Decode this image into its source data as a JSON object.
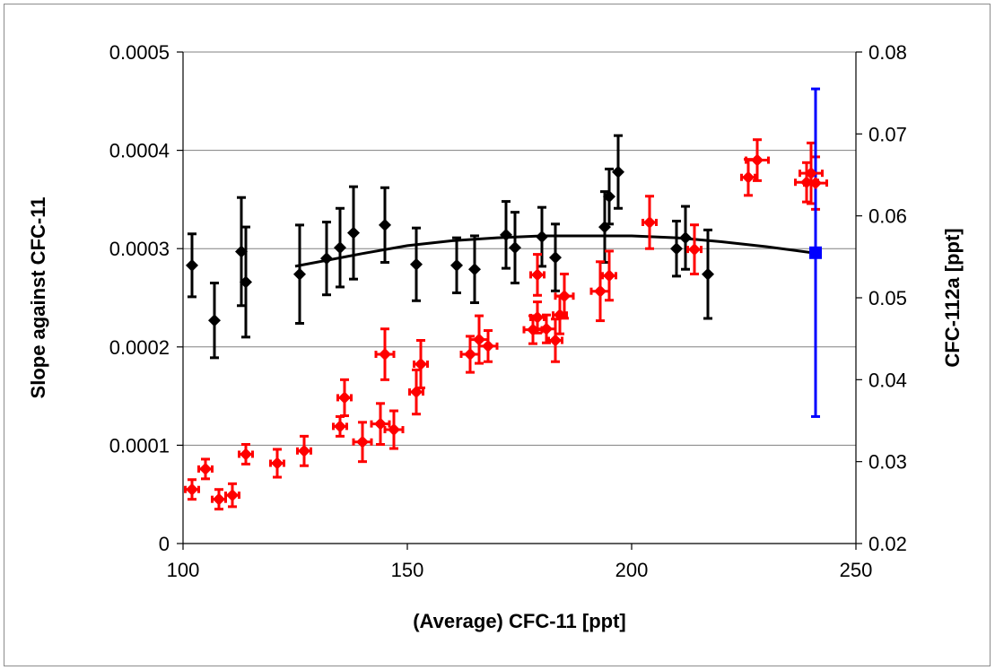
{
  "chart_data": {
    "type": "scatter",
    "title": "",
    "xlabel": "(Average) CFC-11 [ppt]",
    "ylabel": "Slope against CFC-11",
    "y2label": "CFC-112a [ppt]",
    "xlim": [
      100,
      250
    ],
    "ylim": [
      0,
      0.0005
    ],
    "y2lim": [
      0.02,
      0.08
    ],
    "x_ticks": [
      "100",
      "150",
      "200",
      "250"
    ],
    "y_ticks": [
      "0",
      "0.0001",
      "0.0002",
      "0.0003",
      "0.0004",
      "0.0005"
    ],
    "y2_ticks": [
      "0.02",
      "0.03",
      "0.04",
      "0.05",
      "0.06",
      "0.07",
      "0.08"
    ],
    "grid": "horizontal",
    "series": [
      {
        "axis": "left",
        "color": "#000000",
        "marker": "diamond",
        "points": [
          {
            "x": 102,
            "y": 0.000283,
            "yerr": 3.2e-05
          },
          {
            "x": 107,
            "y": 0.000227,
            "yerr": 3.8e-05
          },
          {
            "x": 113,
            "y": 0.000297,
            "yerr": 5.5e-05
          },
          {
            "x": 114,
            "y": 0.000266,
            "yerr": 5.6e-05
          },
          {
            "x": 126,
            "y": 0.000274,
            "yerr": 5e-05
          },
          {
            "x": 132,
            "y": 0.00029,
            "yerr": 3.7e-05
          },
          {
            "x": 135,
            "y": 0.000301,
            "yerr": 4e-05
          },
          {
            "x": 138,
            "y": 0.000316,
            "yerr": 4.7e-05
          },
          {
            "x": 145,
            "y": 0.000324,
            "yerr": 3.8e-05
          },
          {
            "x": 152,
            "y": 0.000284,
            "yerr": 3.7e-05
          },
          {
            "x": 161,
            "y": 0.000283,
            "yerr": 2.8e-05
          },
          {
            "x": 165,
            "y": 0.000279,
            "yerr": 3.4e-05
          },
          {
            "x": 172,
            "y": 0.000314,
            "yerr": 3.4e-05
          },
          {
            "x": 174,
            "y": 0.000301,
            "yerr": 3.6e-05
          },
          {
            "x": 180,
            "y": 0.000312,
            "yerr": 3e-05
          },
          {
            "x": 183,
            "y": 0.000291,
            "yerr": 3.4e-05
          },
          {
            "x": 194,
            "y": 0.000322,
            "yerr": 3.6e-05
          },
          {
            "x": 195,
            "y": 0.000353,
            "yerr": 2.8e-05
          },
          {
            "x": 197,
            "y": 0.000378,
            "yerr": 3.7e-05
          },
          {
            "x": 210,
            "y": 0.0003,
            "yerr": 2.8e-05
          },
          {
            "x": 212,
            "y": 0.000311,
            "yerr": 3.2e-05
          },
          {
            "x": 217,
            "y": 0.000274,
            "yerr": 4.5e-05
          }
        ]
      },
      {
        "axis": "left",
        "type": "line",
        "color": "#000000",
        "points": [
          {
            "x": 125,
            "y": 0.000282
          },
          {
            "x": 140,
            "y": 0.000295
          },
          {
            "x": 150,
            "y": 0.000303
          },
          {
            "x": 160,
            "y": 0.000308
          },
          {
            "x": 170,
            "y": 0.000311
          },
          {
            "x": 180,
            "y": 0.000313
          },
          {
            "x": 190,
            "y": 0.000313
          },
          {
            "x": 200,
            "y": 0.000313
          },
          {
            "x": 210,
            "y": 0.000311
          },
          {
            "x": 220,
            "y": 0.000307
          },
          {
            "x": 230,
            "y": 0.000302
          },
          {
            "x": 240,
            "y": 0.000296
          }
        ]
      },
      {
        "axis": "right",
        "color": "#ff0000",
        "marker": "diamond",
        "points": [
          {
            "x": 102,
            "y": 0.0266,
            "yerr": 0.0012,
            "xerr": 1.5
          },
          {
            "x": 105,
            "y": 0.0291,
            "yerr": 0.0012,
            "xerr": 1.5
          },
          {
            "x": 108,
            "y": 0.0254,
            "yerr": 0.0012,
            "xerr": 1.5
          },
          {
            "x": 111,
            "y": 0.0259,
            "yerr": 0.0014,
            "xerr": 1.5
          },
          {
            "x": 114,
            "y": 0.0309,
            "yerr": 0.0012,
            "xerr": 1.5
          },
          {
            "x": 121,
            "y": 0.0298,
            "yerr": 0.0017,
            "xerr": 1.5
          },
          {
            "x": 127,
            "y": 0.0313,
            "yerr": 0.0018,
            "xerr": 1.5
          },
          {
            "x": 135,
            "y": 0.0343,
            "yerr": 0.0012,
            "xerr": 1.5
          },
          {
            "x": 136,
            "y": 0.0378,
            "yerr": 0.0022,
            "xerr": 1.5
          },
          {
            "x": 140,
            "y": 0.0324,
            "yerr": 0.0024,
            "xerr": 2
          },
          {
            "x": 144,
            "y": 0.0346,
            "yerr": 0.0025,
            "xerr": 2
          },
          {
            "x": 145,
            "y": 0.0431,
            "yerr": 0.0031,
            "xerr": 2
          },
          {
            "x": 147,
            "y": 0.0339,
            "yerr": 0.0023,
            "xerr": 2
          },
          {
            "x": 152,
            "y": 0.0385,
            "yerr": 0.0027,
            "xerr": 1.5
          },
          {
            "x": 153,
            "y": 0.0419,
            "yerr": 0.0029,
            "xerr": 1.5
          },
          {
            "x": 164,
            "y": 0.0431,
            "yerr": 0.0022,
            "xerr": 2
          },
          {
            "x": 166,
            "y": 0.0449,
            "yerr": 0.0029,
            "xerr": 2
          },
          {
            "x": 168,
            "y": 0.0441,
            "yerr": 0.0019,
            "xerr": 2
          },
          {
            "x": 178,
            "y": 0.0461,
            "yerr": 0.0017,
            "xerr": 2
          },
          {
            "x": 179,
            "y": 0.0476,
            "yerr": 0.0019,
            "xerr": 1.5
          },
          {
            "x": 179,
            "y": 0.0528,
            "yerr": 0.0025,
            "xerr": 1.5
          },
          {
            "x": 181,
            "y": 0.0462,
            "yerr": 0.0017,
            "xerr": 2
          },
          {
            "x": 183,
            "y": 0.0448,
            "yerr": 0.0026,
            "xerr": 1.5
          },
          {
            "x": 184,
            "y": 0.0479,
            "yerr": 0.0023,
            "xerr": 1.5
          },
          {
            "x": 185,
            "y": 0.0502,
            "yerr": 0.0027,
            "xerr": 2
          },
          {
            "x": 193,
            "y": 0.0508,
            "yerr": 0.0036,
            "xerr": 2
          },
          {
            "x": 195,
            "y": 0.0527,
            "yerr": 0.003,
            "xerr": 1.5
          },
          {
            "x": 204,
            "y": 0.0592,
            "yerr": 0.0032,
            "xerr": 1.5
          },
          {
            "x": 214,
            "y": 0.0559,
            "yerr": 0.003,
            "xerr": 1.5
          },
          {
            "x": 226,
            "y": 0.0647,
            "yerr": 0.0022,
            "xerr": 1.5
          },
          {
            "x": 228,
            "y": 0.0668,
            "yerr": 0.0025,
            "xerr": 2.5
          },
          {
            "x": 239,
            "y": 0.0641,
            "yerr": 0.0024,
            "xerr": 2.5
          },
          {
            "x": 240,
            "y": 0.0652,
            "yerr": 0.0037,
            "xerr": 2.5
          },
          {
            "x": 241,
            "y": 0.064,
            "yerr": 0.0032,
            "xerr": 2.5
          }
        ]
      },
      {
        "axis": "right",
        "color": "#0000ff",
        "marker": "square",
        "points": [
          {
            "x": 241,
            "y": 0.0555,
            "yerr": 0.02
          }
        ]
      }
    ]
  }
}
